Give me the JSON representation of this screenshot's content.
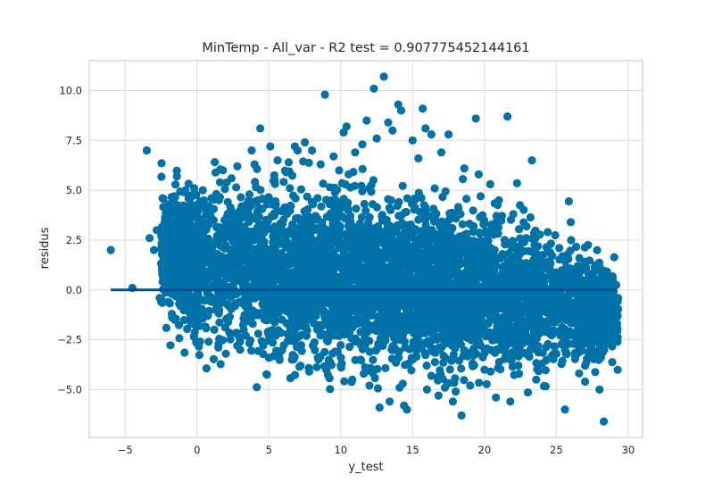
{
  "chart_data": {
    "type": "scatter",
    "title": "MinTemp - All_var - R2 test = 0.907775452144161",
    "xlabel": "y_test",
    "ylabel": "residus",
    "xlim": [
      -7.5,
      31
    ],
    "ylim": [
      -7.4,
      11.5
    ],
    "x_ticks": [
      -5,
      0,
      5,
      10,
      15,
      20,
      25,
      30
    ],
    "x_tick_labels": [
      "−5",
      "0",
      "5",
      "10",
      "15",
      "20",
      "25",
      "30"
    ],
    "y_ticks": [
      -5,
      -2.5,
      0,
      2.5,
      5,
      7.5,
      10
    ],
    "y_tick_labels": [
      "−5.0",
      "−2.5",
      "0.0",
      "2.5",
      "5.0",
      "7.5",
      "10.0"
    ],
    "grid": true,
    "point_color": "#0072a8",
    "line_color": "#02508f",
    "reference_line": {
      "x": [
        -6,
        29.2
      ],
      "y": [
        0,
        0
      ]
    },
    "points": [
      [
        -6.0,
        2.0
      ],
      [
        -4.5,
        0.1
      ],
      [
        -3.5,
        7.0
      ],
      [
        -3.3,
        2.6
      ],
      [
        -3.0,
        2.0
      ],
      [
        -2.8,
        3.0
      ],
      [
        -2.6,
        -0.4
      ],
      [
        -2.4,
        4.6
      ],
      [
        -2.2,
        1.5
      ],
      [
        -2.0,
        3.6
      ],
      [
        -2.0,
        -0.6
      ],
      [
        -1.8,
        4.0
      ],
      [
        -1.6,
        2.2
      ],
      [
        -1.5,
        -0.3
      ],
      [
        -1.4,
        5.7
      ],
      [
        -1.2,
        3.1
      ],
      [
        -1.0,
        0.9
      ],
      [
        -0.9,
        4.9
      ],
      [
        -0.8,
        -1.0
      ],
      [
        -0.6,
        1.8
      ],
      [
        -0.4,
        -1.7
      ],
      [
        -0.3,
        3.7
      ],
      [
        -0.2,
        5.1
      ],
      [
        0.0,
        -0.8
      ],
      [
        0.2,
        2.4
      ],
      [
        0.4,
        5.0
      ],
      [
        0.6,
        -1.2
      ],
      [
        0.8,
        -2.6
      ],
      [
        1.0,
        4.6
      ],
      [
        1.2,
        -2.0
      ],
      [
        1.5,
        -2.7
      ],
      [
        1.6,
        5.4
      ],
      [
        1.8,
        6.0
      ],
      [
        2.0,
        -3.2
      ],
      [
        2.4,
        5.6
      ],
      [
        2.8,
        6.2
      ],
      [
        3.0,
        -3.0
      ],
      [
        3.4,
        -2.3
      ],
      [
        3.8,
        7.0
      ],
      [
        4.0,
        6.3
      ],
      [
        4.4,
        8.1
      ],
      [
        4.6,
        -2.8
      ],
      [
        5.0,
        -3.4
      ],
      [
        5.1,
        7.2
      ],
      [
        5.6,
        6.5
      ],
      [
        5.8,
        -3.1
      ],
      [
        6.2,
        5.9
      ],
      [
        6.6,
        -3.5
      ],
      [
        6.8,
        7.2
      ],
      [
        7.0,
        7.0
      ],
      [
        7.2,
        -3.8
      ],
      [
        7.5,
        7.4
      ],
      [
        7.8,
        -4.1
      ],
      [
        8.0,
        7.0
      ],
      [
        8.4,
        -3.4
      ],
      [
        8.6,
        6.3
      ],
      [
        8.9,
        9.8
      ],
      [
        9.0,
        -4.0
      ],
      [
        9.5,
        6.7
      ],
      [
        10.0,
        -3.8
      ],
      [
        10.2,
        7.9
      ],
      [
        10.4,
        8.2
      ],
      [
        10.8,
        -4.5
      ],
      [
        11.0,
        6.9
      ],
      [
        11.5,
        7.3
      ],
      [
        11.6,
        -4.2
      ],
      [
        11.8,
        8.5
      ],
      [
        12.0,
        -4.8
      ],
      [
        12.3,
        10.1
      ],
      [
        12.5,
        7.6
      ],
      [
        12.7,
        -5.9
      ],
      [
        13.0,
        10.7
      ],
      [
        13.3,
        8.4
      ],
      [
        13.4,
        -5.6
      ],
      [
        13.6,
        8.0
      ],
      [
        14.0,
        9.3
      ],
      [
        14.2,
        9.0
      ],
      [
        14.4,
        -5.8
      ],
      [
        14.6,
        -6.0
      ],
      [
        15.0,
        7.5
      ],
      [
        15.4,
        6.6
      ],
      [
        15.7,
        9.1
      ],
      [
        15.9,
        8.1
      ],
      [
        16.0,
        -5.0
      ],
      [
        16.3,
        7.8
      ],
      [
        16.8,
        -5.3
      ],
      [
        17.0,
        6.9
      ],
      [
        17.5,
        7.8
      ],
      [
        17.8,
        -5.6
      ],
      [
        18.0,
        -5.1
      ],
      [
        18.4,
        -6.3
      ],
      [
        18.6,
        6.1
      ],
      [
        19.0,
        -4.8
      ],
      [
        19.4,
        8.6
      ],
      [
        19.6,
        5.8
      ],
      [
        20.0,
        -4.0
      ],
      [
        20.4,
        5.3
      ],
      [
        20.8,
        -5.4
      ],
      [
        21.0,
        4.5
      ],
      [
        21.6,
        8.7
      ],
      [
        21.8,
        -5.6
      ],
      [
        22.0,
        3.8
      ],
      [
        22.4,
        -4.2
      ],
      [
        22.9,
        2.6
      ],
      [
        23.3,
        6.5
      ],
      [
        23.6,
        -4.5
      ],
      [
        24.0,
        -3.7
      ],
      [
        24.4,
        2.9
      ],
      [
        25.0,
        -3.2
      ],
      [
        25.2,
        2.1
      ],
      [
        25.6,
        -6.0
      ],
      [
        26.0,
        3.4
      ],
      [
        26.2,
        -2.7
      ],
      [
        26.6,
        1.6
      ],
      [
        27.0,
        -4.6
      ],
      [
        27.5,
        -1.8
      ],
      [
        28.0,
        -5.0
      ],
      [
        28.3,
        -6.6
      ],
      [
        28.6,
        -1.5
      ],
      [
        29.0,
        -2.5
      ],
      [
        29.2,
        -1.0
      ],
      [
        29.1,
        -2.1
      ]
    ],
    "cloud": {
      "x_range": [
        -2.5,
        29.3
      ],
      "center": [
        [
          -2,
          1.6
        ],
        [
          3,
          1.1
        ],
        [
          10,
          0.5
        ],
        [
          17,
          0.0
        ],
        [
          24,
          -0.4
        ],
        [
          29,
          -1.1
        ]
      ],
      "spread": [
        [
          -2,
          1.4
        ],
        [
          2,
          1.9
        ],
        [
          8,
          2.0
        ],
        [
          15,
          1.9
        ],
        [
          22,
          1.8
        ],
        [
          29,
          0.9
        ]
      ],
      "count": 5000
    }
  }
}
